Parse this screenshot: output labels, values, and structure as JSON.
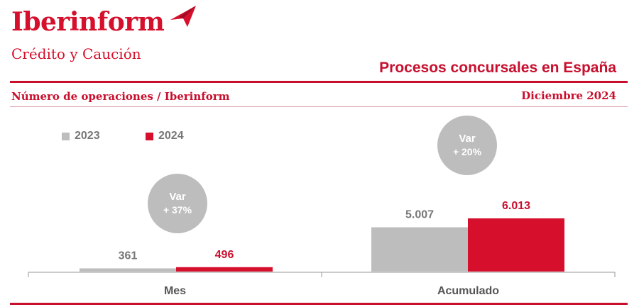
{
  "brand": {
    "name": "Iberinform",
    "subtitle": "Crédito y Caución",
    "logo_icon": "paper-plane-icon"
  },
  "page_title": "Procesos concursales en España",
  "subtitle": "Número de operaciones / Iberinform",
  "date": "Diciembre 2024",
  "colors": {
    "accent": "#c8102e",
    "series_2023": "#bdbdbd",
    "series_2024": "#d6102c",
    "badge": "#bdbdbd"
  },
  "chart_data": {
    "type": "bar",
    "categories": [
      "Mes",
      "Acumulado"
    ],
    "series": [
      {
        "name": "2023",
        "values": [
          361,
          5007
        ],
        "labels": [
          "361",
          "5.007"
        ]
      },
      {
        "name": "2024",
        "values": [
          496,
          6013
        ],
        "labels": [
          "496",
          "6.013"
        ]
      }
    ],
    "legend_position": "top-left",
    "variations": [
      {
        "category": "Mes",
        "label": "Var",
        "value": "+ 37%"
      },
      {
        "category": "Acumulado",
        "label": "Var",
        "value": "+ 20%"
      }
    ],
    "grid": false
  }
}
